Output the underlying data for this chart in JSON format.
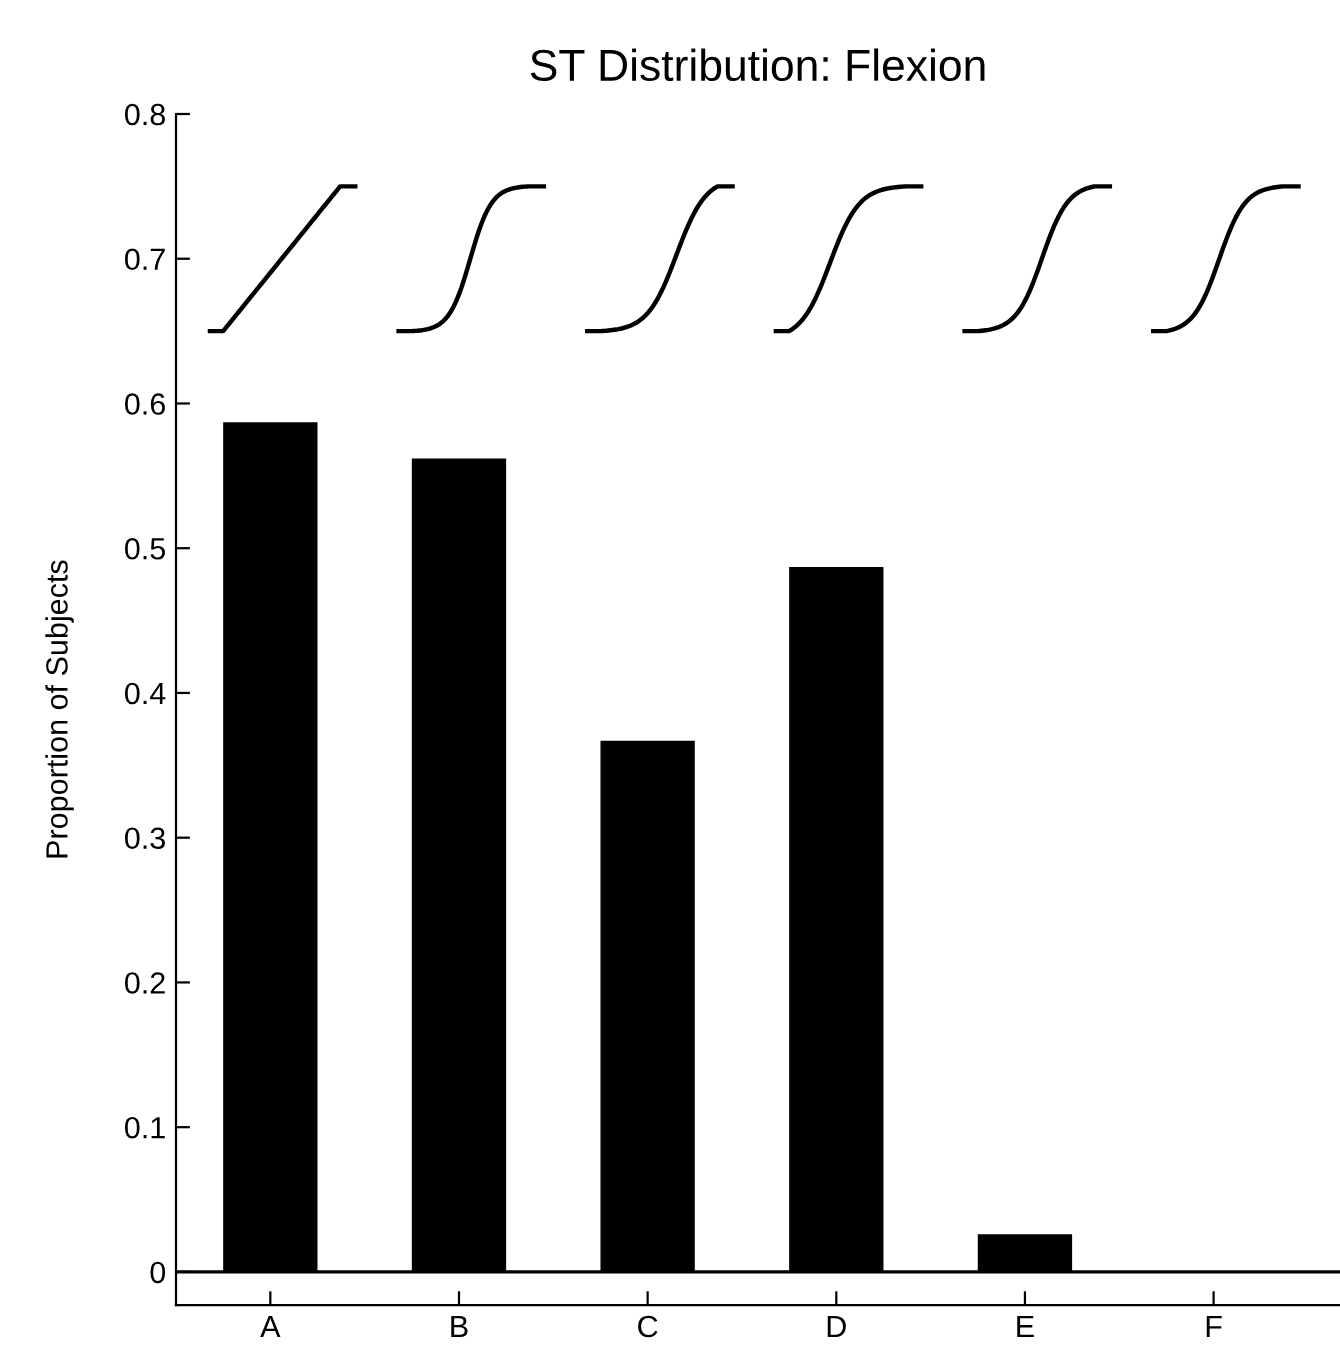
{
  "chart_data": {
    "type": "bar",
    "title": "ST Distribution: Flexion",
    "ylabel": "Proportion of Subjects",
    "categories": [
      "A",
      "B",
      "C",
      "D",
      "E",
      "F"
    ],
    "series": [
      {
        "color": "#000000",
        "values": [
          0.587,
          0.562,
          0.367,
          0.487,
          0.026,
          0.0
        ]
      }
    ],
    "ylim": [
      -0.023,
      0.8
    ],
    "yticks": [
      0,
      0.1,
      0.2,
      0.3,
      0.4,
      0.5,
      0.6,
      0.7,
      0.8
    ],
    "ref_lines": [
      {
        "axis": "y",
        "value": 0,
        "color": "#000000"
      }
    ],
    "grid": false,
    "legend": false
  }
}
